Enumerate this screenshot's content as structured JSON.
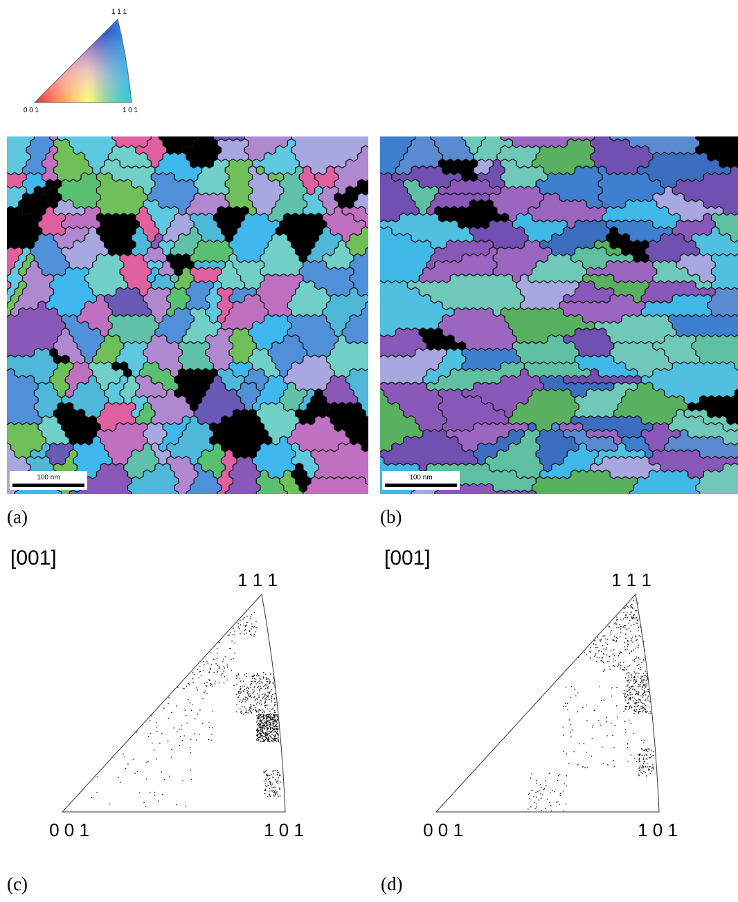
{
  "legend": {
    "labels": [
      "1 1 1",
      "0 0 1",
      "1 0 1"
    ]
  },
  "panels": [
    {
      "label": "(a)",
      "scale_bar": "100 nm"
    },
    {
      "label": "(b)",
      "scale_bar": "100 nm"
    },
    {
      "label": "(c)",
      "direction": "[001]",
      "corners": [
        "1 1 1",
        "0 0 1",
        "1 0 1"
      ]
    },
    {
      "label": "(d)",
      "direction": "[001]",
      "corners": [
        "1 1 1",
        "0 0 1",
        "1 0 1"
      ]
    }
  ]
}
